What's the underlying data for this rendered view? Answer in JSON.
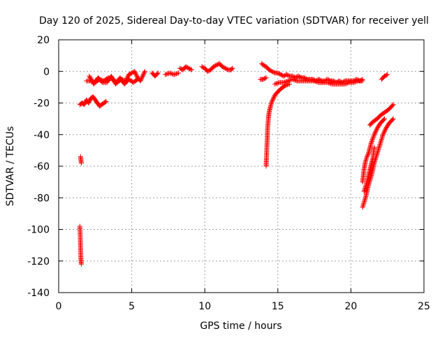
{
  "chart_data": {
    "type": "scatter",
    "title": "Day 120 of 2025, Sidereal Day-to-day VTEC variation (SDTVAR) for receiver yell",
    "xlabel": "GPS time / hours",
    "ylabel": "SDTVAR / TECUs",
    "xlim": [
      0,
      25
    ],
    "ylim": [
      -140,
      20
    ],
    "xticks": [
      "0",
      "5",
      "10",
      "15",
      "20",
      "25"
    ],
    "yticks": [
      "20",
      "0",
      "-20",
      "-40",
      "-60",
      "-80",
      "-100",
      "-120",
      "-140"
    ],
    "grid": true,
    "marker": "plus",
    "colors": {
      "series": "#ff0000",
      "grid": "#a0a0a0",
      "axis": "#000000"
    },
    "series": [
      {
        "segments": [
          [
            [
              1.45,
              -21
            ],
            [
              1.6,
              -20
            ],
            [
              1.75,
              -21
            ],
            [
              1.9,
              -18
            ],
            [
              2.05,
              -20
            ],
            [
              2.2,
              -17
            ],
            [
              2.35,
              -16
            ],
            [
              2.5,
              -18
            ],
            [
              2.65,
              -20
            ],
            [
              2.8,
              -22
            ],
            [
              2.95,
              -21
            ],
            [
              3.1,
              -20
            ],
            [
              3.25,
              -19
            ]
          ],
          [
            [
              1.5,
              -54
            ],
            [
              1.55,
              -58
            ]
          ],
          [
            [
              1.45,
              -98
            ],
            [
              1.48,
              -105
            ],
            [
              1.5,
              -112
            ],
            [
              1.52,
              -118
            ],
            [
              1.55,
              -122
            ]
          ],
          [
            [
              1.9,
              -6
            ],
            [
              2.2,
              -6
            ],
            [
              2.5,
              -7
            ],
            [
              2.8,
              -5
            ],
            [
              3.1,
              -6
            ],
            [
              3.4,
              -4
            ],
            [
              3.7,
              -5
            ],
            [
              4.0,
              -7
            ],
            [
              4.3,
              -5
            ],
            [
              4.6,
              -6
            ],
            [
              4.8,
              -2
            ],
            [
              5.0,
              -1
            ],
            [
              5.2,
              0
            ],
            [
              5.4,
              -4
            ],
            [
              5.6,
              -6
            ],
            [
              5.8,
              -2
            ],
            [
              5.9,
              0
            ]
          ],
          [
            [
              2.1,
              -3
            ],
            [
              2.4,
              -8
            ],
            [
              2.7,
              -4
            ],
            [
              3.0,
              -7
            ],
            [
              3.3,
              -7
            ],
            [
              3.6,
              -3
            ],
            [
              3.9,
              -8
            ],
            [
              4.2,
              -4
            ],
            [
              4.5,
              -8
            ],
            [
              4.8,
              -5
            ],
            [
              5.1,
              -7
            ],
            [
              5.4,
              -5
            ]
          ],
          [
            [
              6.4,
              -1
            ],
            [
              6.6,
              -3
            ],
            [
              6.8,
              -1
            ]
          ],
          [
            [
              7.3,
              -2
            ],
            [
              7.6,
              -1
            ],
            [
              7.9,
              -2
            ],
            [
              8.2,
              -1
            ]
          ],
          [
            [
              8.3,
              2
            ],
            [
              8.5,
              1
            ],
            [
              8.7,
              3
            ],
            [
              8.9,
              2
            ],
            [
              9.1,
              1
            ]
          ],
          [
            [
              9.8,
              3
            ],
            [
              10.0,
              2
            ],
            [
              10.2,
              0
            ],
            [
              10.4,
              1
            ],
            [
              10.6,
              3
            ],
            [
              10.8,
              4
            ],
            [
              11.0,
              5
            ],
            [
              11.2,
              3
            ],
            [
              11.4,
              2
            ],
            [
              11.6,
              1
            ],
            [
              11.8,
              1
            ],
            [
              11.9,
              2
            ]
          ],
          [
            [
              13.9,
              5
            ],
            [
              14.0,
              4
            ],
            [
              14.2,
              3
            ],
            [
              14.4,
              1
            ],
            [
              14.6,
              0
            ],
            [
              14.8,
              -1
            ],
            [
              15.0,
              -1
            ],
            [
              15.2,
              -2
            ],
            [
              15.4,
              -3
            ],
            [
              15.6,
              -2
            ],
            [
              15.8,
              -3
            ],
            [
              16.0,
              -3
            ],
            [
              16.2,
              -4
            ],
            [
              16.4,
              -3
            ],
            [
              16.6,
              -4
            ],
            [
              16.8,
              -4
            ],
            [
              17.0,
              -5
            ],
            [
              17.2,
              -5
            ],
            [
              17.4,
              -5
            ],
            [
              17.6,
              -6
            ],
            [
              17.8,
              -5
            ],
            [
              18.0,
              -6
            ],
            [
              18.2,
              -6
            ],
            [
              18.4,
              -5
            ],
            [
              18.6,
              -6
            ],
            [
              18.8,
              -6
            ],
            [
              19.0,
              -7
            ],
            [
              19.2,
              -6
            ],
            [
              19.4,
              -7
            ],
            [
              19.6,
              -6
            ],
            [
              19.8,
              -6
            ],
            [
              20.0,
              -6
            ],
            [
              20.2,
              -6
            ],
            [
              20.4,
              -5
            ],
            [
              20.6,
              -6
            ],
            [
              20.8,
              -5
            ]
          ],
          [
            [
              14.8,
              -8
            ],
            [
              15.1,
              -7
            ],
            [
              15.4,
              -7
            ],
            [
              15.7,
              -6
            ],
            [
              16.0,
              -5
            ],
            [
              16.3,
              -6
            ],
            [
              16.6,
              -6
            ],
            [
              16.9,
              -6
            ],
            [
              17.2,
              -6
            ],
            [
              17.5,
              -6
            ],
            [
              17.8,
              -7
            ],
            [
              18.1,
              -7
            ],
            [
              18.4,
              -7
            ],
            [
              18.7,
              -8
            ],
            [
              19.0,
              -8
            ],
            [
              19.3,
              -8
            ],
            [
              19.6,
              -8
            ],
            [
              19.9,
              -7
            ],
            [
              20.2,
              -7
            ],
            [
              20.5,
              -6
            ],
            [
              20.8,
              -6
            ]
          ],
          [
            [
              13.8,
              -5
            ],
            [
              14.0,
              -5
            ],
            [
              14.2,
              -4
            ]
          ],
          [
            [
              14.2,
              -60
            ],
            [
              14.22,
              -55
            ],
            [
              14.25,
              -48
            ],
            [
              14.28,
              -42
            ],
            [
              14.3,
              -36
            ],
            [
              14.35,
              -30
            ],
            [
              14.4,
              -26
            ],
            [
              14.5,
              -22
            ],
            [
              14.6,
              -19
            ],
            [
              14.7,
              -17
            ],
            [
              14.8,
              -15
            ],
            [
              15.0,
              -13
            ],
            [
              15.2,
              -11
            ],
            [
              15.5,
              -9
            ],
            [
              15.8,
              -8
            ]
          ],
          [
            [
              22.1,
              -5
            ],
            [
              22.3,
              -3
            ],
            [
              22.5,
              -2
            ]
          ],
          [
            [
              20.8,
              -70
            ],
            [
              20.9,
              -62
            ],
            [
              21.0,
              -57
            ],
            [
              21.1,
              -54
            ],
            [
              21.2,
              -52
            ],
            [
              21.4,
              -45
            ],
            [
              21.6,
              -40
            ],
            [
              21.8,
              -36
            ],
            [
              22.0,
              -33
            ],
            [
              22.3,
              -30
            ]
          ],
          [
            [
              20.8,
              -86
            ],
            [
              21.0,
              -80
            ],
            [
              21.2,
              -72
            ],
            [
              21.4,
              -66
            ],
            [
              21.6,
              -58
            ],
            [
              21.8,
              -52
            ],
            [
              22.0,
              -46
            ],
            [
              22.2,
              -40
            ],
            [
              22.4,
              -36
            ],
            [
              22.6,
              -33
            ],
            [
              22.9,
              -30
            ]
          ],
          [
            [
              20.9,
              -76
            ],
            [
              21.1,
              -70
            ],
            [
              21.3,
              -62
            ],
            [
              21.5,
              -55
            ],
            [
              21.6,
              -48
            ]
          ],
          [
            [
              21.3,
              -34
            ],
            [
              21.5,
              -32
            ],
            [
              21.8,
              -30
            ],
            [
              22.0,
              -28
            ],
            [
              22.3,
              -26
            ],
            [
              22.6,
              -24
            ],
            [
              22.9,
              -21
            ]
          ]
        ]
      }
    ]
  }
}
